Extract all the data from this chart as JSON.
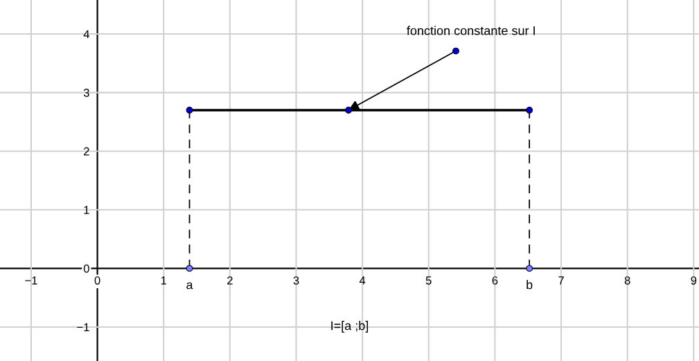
{
  "chart_data": {
    "type": "line",
    "xlim": [
      -1.47,
      9.08
    ],
    "ylim": [
      -1.58,
      4.58
    ],
    "xticks": [
      -1,
      0,
      1,
      2,
      3,
      4,
      5,
      6,
      7,
      8,
      9
    ],
    "yticks": [
      -1,
      0,
      1,
      2,
      3,
      4
    ],
    "grid": true,
    "series": [
      {
        "color": "#000000",
        "x": [
          1.39,
          3.79,
          6.52
        ],
        "values": [
          2.7,
          2.7,
          2.7
        ],
        "marker": "none",
        "line_style": "solid"
      },
      {
        "color": "#000000",
        "x": [
          1.39,
          1.39
        ],
        "values": [
          0,
          2.7
        ],
        "marker": "none",
        "line_style": "dashed"
      },
      {
        "color": "#000000",
        "x": [
          6.52,
          6.52
        ],
        "values": [
          0,
          2.7
        ],
        "marker": "none",
        "line_style": "dashed"
      },
      {
        "type": "scatter",
        "color": "#0000cc",
        "x": [
          1.39,
          3.79,
          6.52,
          5.41
        ],
        "values": [
          2.7,
          2.7,
          2.7,
          3.71
        ],
        "marker": "circle"
      },
      {
        "type": "scatter",
        "color": "#8080ff",
        "x": [
          1.39,
          6.52
        ],
        "values": [
          0,
          0
        ],
        "marker": "circle"
      }
    ],
    "annotations": [
      {
        "text": "fonction constante sur I",
        "x": 5.41,
        "y": 3.71
      },
      {
        "text": "a",
        "x": 1.39,
        "y": 0
      },
      {
        "text": "b",
        "x": 6.52,
        "y": 0
      },
      "I=[a ;b]"
    ]
  }
}
